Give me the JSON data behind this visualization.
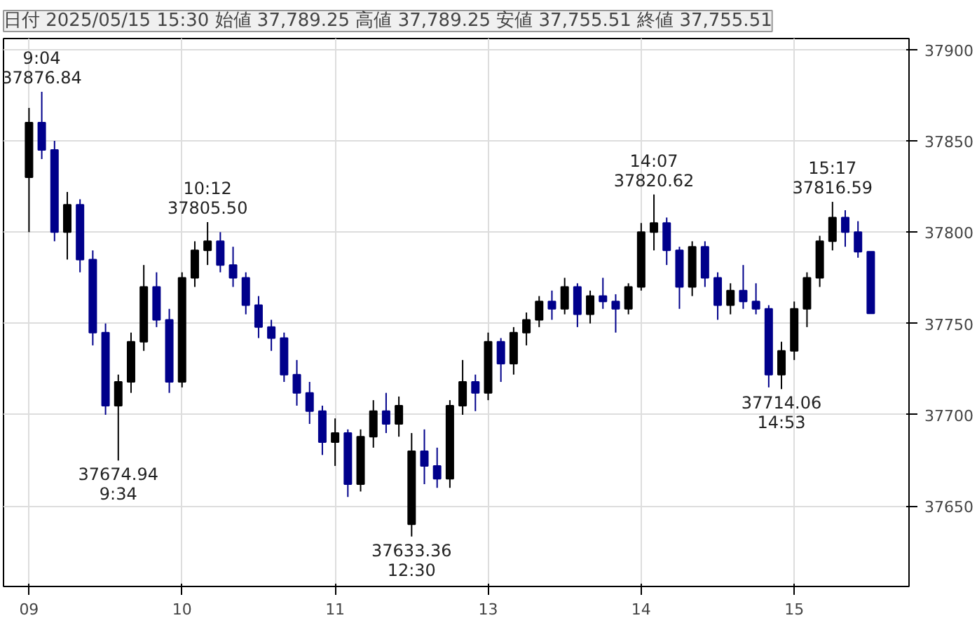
{
  "chart_data": {
    "type": "candlestick",
    "title": "日付 2025/05/15 15:30 始値 37,789.25 高値 37,789.25 安値 37,755.51 終値 37,755.51",
    "categories": [
      "09",
      null,
      null,
      null,
      null,
      null,
      null,
      null,
      null,
      null,
      null,
      null,
      "10",
      null,
      null,
      null,
      null,
      null,
      null,
      null,
      null,
      null,
      null,
      null,
      "11",
      null,
      null,
      null,
      null,
      null,
      null,
      null,
      null,
      null,
      null,
      null,
      "13",
      null,
      null,
      null,
      null,
      null,
      null,
      null,
      null,
      null,
      null,
      null,
      "14",
      null,
      null,
      null,
      null,
      null,
      null,
      null,
      null,
      null,
      null,
      null,
      "15",
      null,
      null,
      null,
      null,
      null,
      null
    ],
    "ohlc": [
      [
        37830,
        37868,
        37800,
        37860
      ],
      [
        37860,
        37876.84,
        37840,
        37845
      ],
      [
        37845,
        37850,
        37795,
        37800
      ],
      [
        37800,
        37822,
        37785,
        37815
      ],
      [
        37815,
        37818,
        37778,
        37785
      ],
      [
        37785,
        37790,
        37738,
        37745
      ],
      [
        37745,
        37750,
        37700,
        37705
      ],
      [
        37705,
        37722,
        37674.94,
        37718
      ],
      [
        37718,
        37745,
        37712,
        37740
      ],
      [
        37740,
        37782,
        37735,
        37770
      ],
      [
        37770,
        37778,
        37748,
        37752
      ],
      [
        37752,
        37758,
        37712,
        37718
      ],
      [
        37718,
        37778,
        37715,
        37775
      ],
      [
        37775,
        37795,
        37770,
        37790
      ],
      [
        37790,
        37805.5,
        37782,
        37795
      ],
      [
        37795,
        37800,
        37778,
        37782
      ],
      [
        37782,
        37792,
        37770,
        37775
      ],
      [
        37775,
        37778,
        37755,
        37760
      ],
      [
        37760,
        37765,
        37742,
        37748
      ],
      [
        37748,
        37752,
        37735,
        37742
      ],
      [
        37742,
        37745,
        37718,
        37722
      ],
      [
        37722,
        37730,
        37705,
        37712
      ],
      [
        37712,
        37718,
        37695,
        37702
      ],
      [
        37702,
        37705,
        37678,
        37685
      ],
      [
        37685,
        37698,
        37672,
        37690
      ],
      [
        37690,
        37692,
        37655,
        37662
      ],
      [
        37662,
        37692,
        37658,
        37688
      ],
      [
        37688,
        37708,
        37682,
        37702
      ],
      [
        37702,
        37712,
        37690,
        37695
      ],
      [
        37695,
        37710,
        37688,
        37705
      ],
      [
        37640,
        37690,
        37633.36,
        37680
      ],
      [
        37680,
        37692,
        37662,
        37672
      ],
      [
        37672,
        37682,
        37660,
        37665
      ],
      [
        37665,
        37708,
        37660,
        37705
      ],
      [
        37705,
        37730,
        37700,
        37718
      ],
      [
        37718,
        37722,
        37702,
        37712
      ],
      [
        37712,
        37745,
        37708,
        37740
      ],
      [
        37740,
        37742,
        37718,
        37728
      ],
      [
        37728,
        37748,
        37722,
        37745
      ],
      [
        37745,
        37756,
        37738,
        37752
      ],
      [
        37752,
        37765,
        37748,
        37762
      ],
      [
        37762,
        37768,
        37752,
        37758
      ],
      [
        37758,
        37775,
        37755,
        37770
      ],
      [
        37770,
        37772,
        37748,
        37755
      ],
      [
        37755,
        37768,
        37750,
        37765
      ],
      [
        37765,
        37775,
        37758,
        37762
      ],
      [
        37762,
        37766,
        37745,
        37758
      ],
      [
        37758,
        37772,
        37755,
        37770
      ],
      [
        37770,
        37805,
        37768,
        37800
      ],
      [
        37800,
        37820.62,
        37790,
        37805
      ],
      [
        37805,
        37808,
        37782,
        37790
      ],
      [
        37790,
        37792,
        37758,
        37770
      ],
      [
        37770,
        37795,
        37765,
        37792
      ],
      [
        37792,
        37795,
        37770,
        37775
      ],
      [
        37775,
        37778,
        37752,
        37760
      ],
      [
        37760,
        37772,
        37755,
        37768
      ],
      [
        37768,
        37782,
        37758,
        37762
      ],
      [
        37762,
        37772,
        37755,
        37758
      ],
      [
        37758,
        37760,
        37715,
        37722
      ],
      [
        37722,
        37740,
        37714.06,
        37735
      ],
      [
        37735,
        37762,
        37730,
        37758
      ],
      [
        37758,
        37778,
        37748,
        37775
      ],
      [
        37775,
        37798,
        37770,
        37795
      ],
      [
        37795,
        37816.59,
        37790,
        37808
      ],
      [
        37808,
        37812,
        37792,
        37800
      ],
      [
        37800,
        37806,
        37786,
        37789.25
      ],
      [
        37789.25,
        37789.25,
        37755.51,
        37755.51
      ]
    ],
    "colors": [
      "#000000",
      "#00008b",
      "#00008b",
      "#000000",
      "#00008b",
      "#00008b",
      "#00008b",
      "#000000",
      "#000000",
      "#000000",
      "#00008b",
      "#00008b",
      "#000000",
      "#000000",
      "#000000",
      "#00008b",
      "#00008b",
      "#00008b",
      "#00008b",
      "#00008b",
      "#00008b",
      "#00008b",
      "#00008b",
      "#00008b",
      "#000000",
      "#00008b",
      "#000000",
      "#000000",
      "#00008b",
      "#000000",
      "#000000",
      "#00008b",
      "#00008b",
      "#000000",
      "#000000",
      "#00008b",
      "#000000",
      "#00008b",
      "#000000",
      "#000000",
      "#000000",
      "#00008b",
      "#000000",
      "#00008b",
      "#000000",
      "#00008b",
      "#00008b",
      "#000000",
      "#000000",
      "#000000",
      "#00008b",
      "#00008b",
      "#000000",
      "#00008b",
      "#00008b",
      "#000000",
      "#00008b",
      "#00008b",
      "#00008b",
      "#000000",
      "#000000",
      "#000000",
      "#000000",
      "#000000",
      "#00008b",
      "#00008b",
      "#00008b"
    ],
    "ylim": [
      37606,
      37906
    ],
    "yticks": [
      37650,
      37700,
      37750,
      37800,
      37850,
      37900
    ],
    "grid": true,
    "annotations": [
      {
        "text": "9:04\n37876.84",
        "y": 37876.84
      },
      {
        "text": "37674.94\n9:34",
        "y": 37674.94
      },
      {
        "text": "10:12\n37805.50",
        "y": 37805.5
      },
      {
        "text": "37633.36\n12:30",
        "y": 37633.36
      },
      {
        "text": "14:07\n37820.62",
        "y": 37820.62
      },
      {
        "text": "37714.06\n14:53",
        "y": 37714.06
      },
      {
        "text": "15:17\n37816.59",
        "y": 37816.59
      }
    ]
  }
}
